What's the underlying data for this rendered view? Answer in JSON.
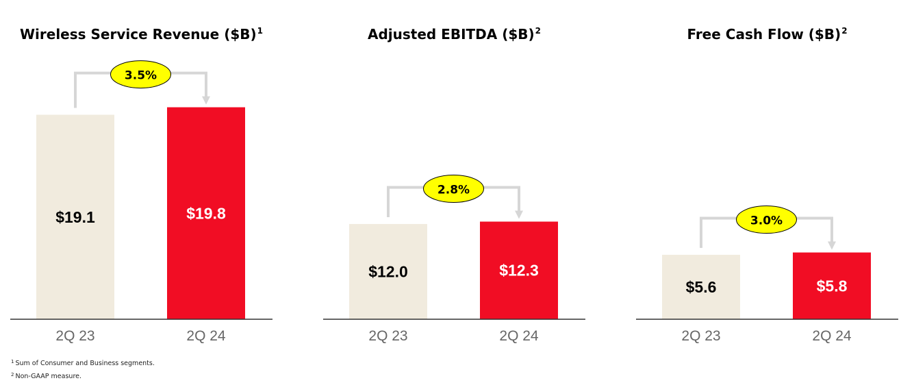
{
  "colors": {
    "prior_bar": "#f1ebde",
    "current_bar": "#f10d24",
    "prior_label": "#000000",
    "current_label": "#ffffff",
    "connector": "#d6d6d6",
    "badge_fill": "#ffff00",
    "badge_stroke": "#000000",
    "axis": "#333333",
    "tick_label": "#666666"
  },
  "chart_data": [
    {
      "type": "bar",
      "title": "Wireless Service Revenue ($B)",
      "footnote_mark": "1",
      "categories": [
        "2Q 23",
        "2Q 24"
      ],
      "values": [
        19.1,
        19.8
      ],
      "value_labels": [
        "$19.1",
        "$19.8"
      ],
      "growth_label": "3.5%",
      "ylim": [
        0,
        21.5
      ]
    },
    {
      "type": "bar",
      "title": "Adjusted EBITDA ($B)",
      "footnote_mark": "2",
      "categories": [
        "2Q 23",
        "2Q 24"
      ],
      "values": [
        12.0,
        12.3
      ],
      "value_labels": [
        "$12.0",
        "$12.3"
      ],
      "growth_label": "2.8%",
      "ylim": [
        0,
        29
      ]
    },
    {
      "type": "bar",
      "title": "Free Cash Flow ($B)",
      "footnote_mark": "2",
      "categories": [
        "2Q 23",
        "2Q 24"
      ],
      "values": [
        5.6,
        5.8
      ],
      "value_labels": [
        "$5.6",
        "$5.8"
      ],
      "growth_label": "3.0%",
      "ylim": [
        0,
        20
      ]
    }
  ],
  "footnotes": [
    {
      "mark": "1",
      "text": "Sum of Consumer and Business segments."
    },
    {
      "mark": "2",
      "text": "Non-GAAP measure."
    }
  ]
}
